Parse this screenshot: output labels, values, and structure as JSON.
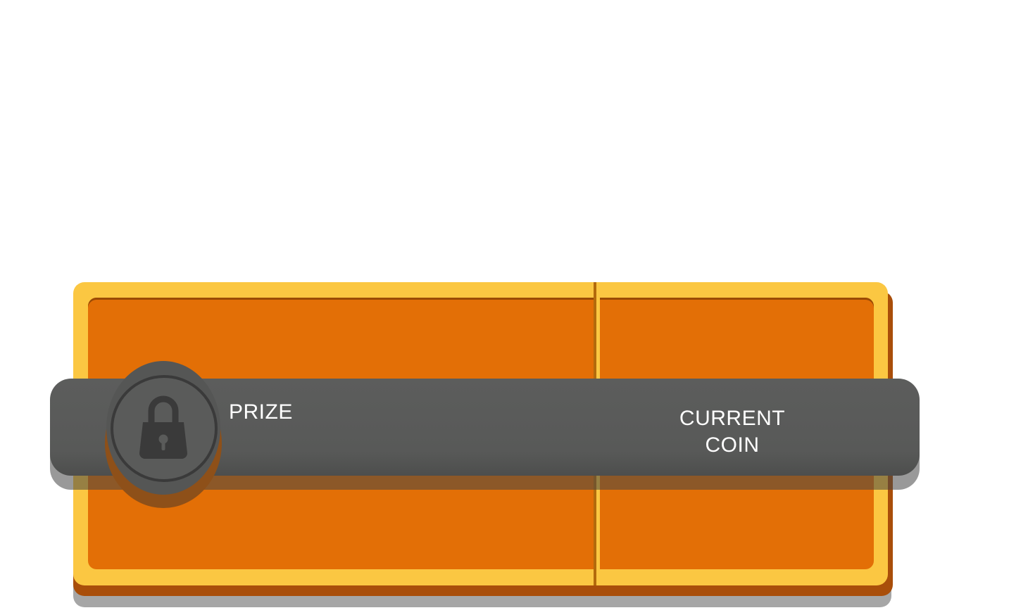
{
  "banner": {
    "prize_label": "PRIZE",
    "current_coin_label_line1": "CURRENT",
    "current_coin_label_line2": "COIN",
    "lock_icon": "lock-icon",
    "locked": true
  },
  "colors": {
    "frame": "#fbc742",
    "panel": "#e36f06",
    "banner": "#5c5d5c",
    "depth": "#a94e0a",
    "text": "#ffffff"
  }
}
